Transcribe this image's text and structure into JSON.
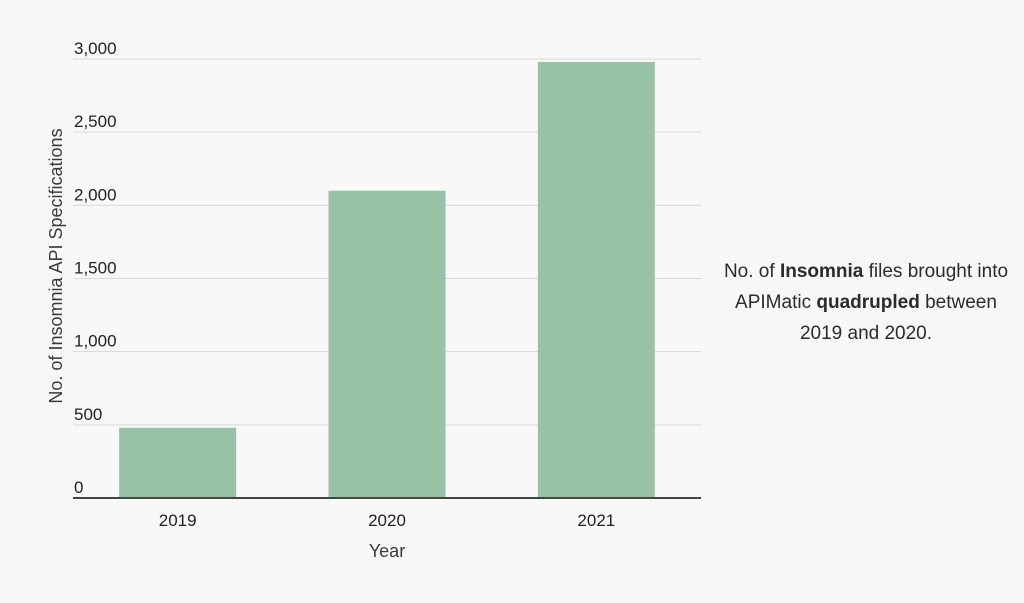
{
  "chart_data": {
    "type": "bar",
    "categories": [
      "2019",
      "2020",
      "2021"
    ],
    "values": [
      480,
      2100,
      2980
    ],
    "xlabel": "Year",
    "ylabel": "No. of Insomnia API Specifications",
    "ylim": [
      0,
      3000
    ],
    "yticks": [
      0,
      500,
      1000,
      1500,
      2000,
      2500,
      3000
    ],
    "ytick_labels": [
      "0",
      "500",
      "1,000",
      "1,500",
      "2,000",
      "2,500",
      "3,000"
    ],
    "grid": true,
    "bar_color": "#97c2a6"
  },
  "annotation": {
    "part1": "No. of ",
    "part2": "Insomnia",
    "part3": " files brought into APIMatic ",
    "part4": "quadrupled",
    "part5": " between 2019 and 2020."
  }
}
